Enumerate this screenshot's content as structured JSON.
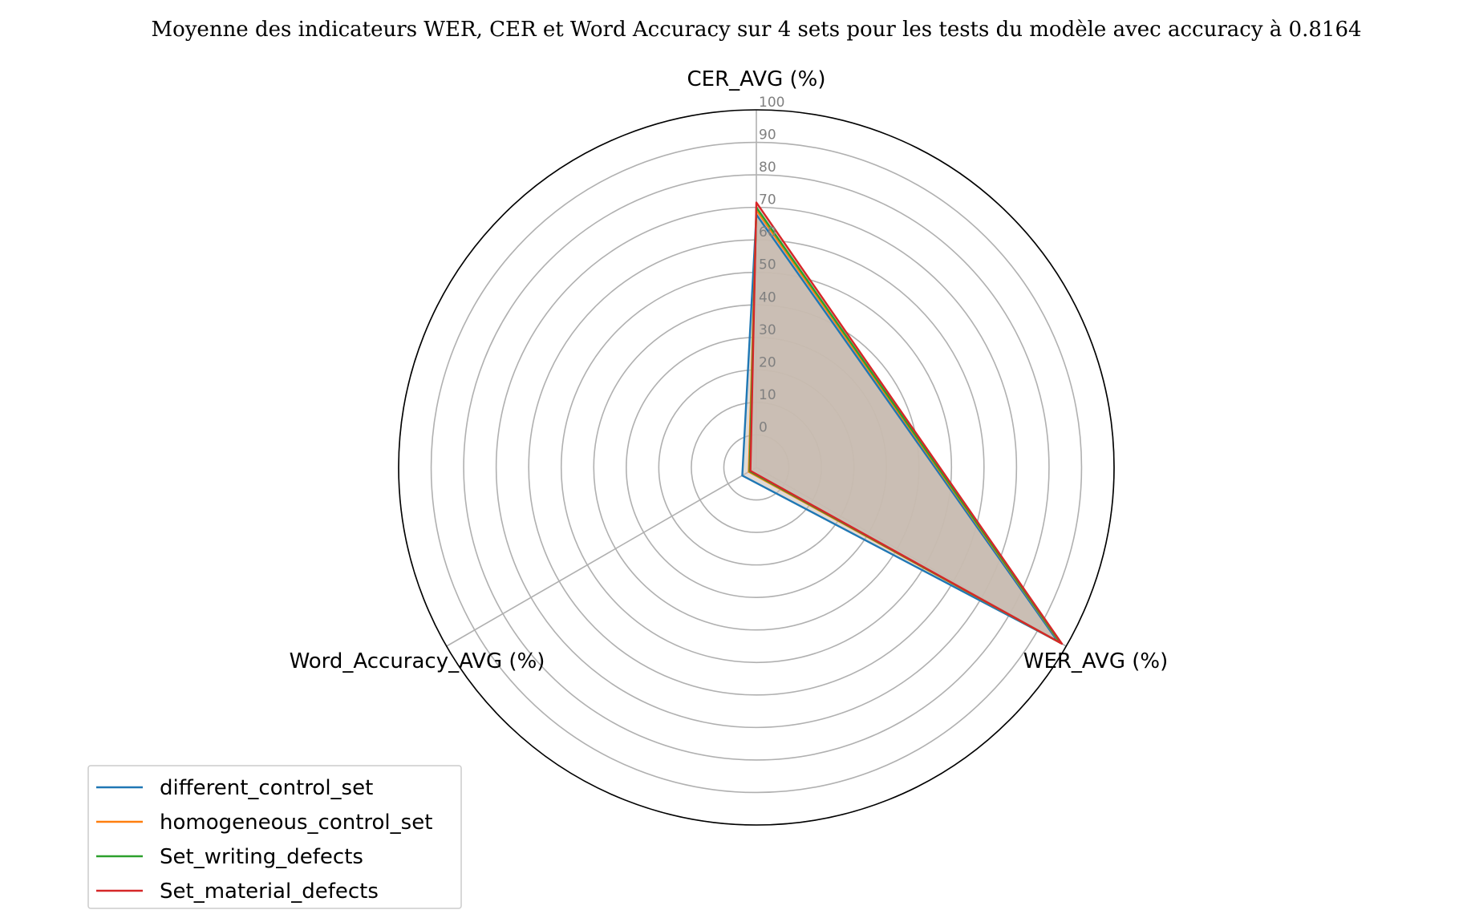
{
  "chart_data": {
    "type": "radar",
    "title": "Moyenne des indicateurs WER, CER et Word Accuracy sur 4 sets pour les tests du modèle avec accuracy à 0.8164",
    "axes": [
      "CER_AVG (%)",
      "WER_AVG (%)",
      "Word_Accuracy_AVG (%)"
    ],
    "r_ticks": [
      "0",
      "10",
      "20",
      "30",
      "40",
      "50",
      "60",
      "70",
      "80",
      "90",
      "100"
    ],
    "r_range": [
      -10,
      100
    ],
    "grid": true,
    "legend_position": "lower-left",
    "fill_color": "#c8bcb0",
    "series": [
      {
        "name": "different_control_set",
        "color": "#1f77b4",
        "values": [
          67.8,
          97.0,
          -5.0
        ]
      },
      {
        "name": "homogeneous_control_set",
        "color": "#ff7f0e",
        "values": [
          69.2,
          97.8,
          -7.3
        ]
      },
      {
        "name": "Set_writing_defects",
        "color": "#2ca02c",
        "values": [
          70.0,
          98.0,
          -7.6
        ]
      },
      {
        "name": "Set_material_defects",
        "color": "#d62728",
        "values": [
          71.5,
          98.5,
          -7.9
        ]
      }
    ]
  }
}
